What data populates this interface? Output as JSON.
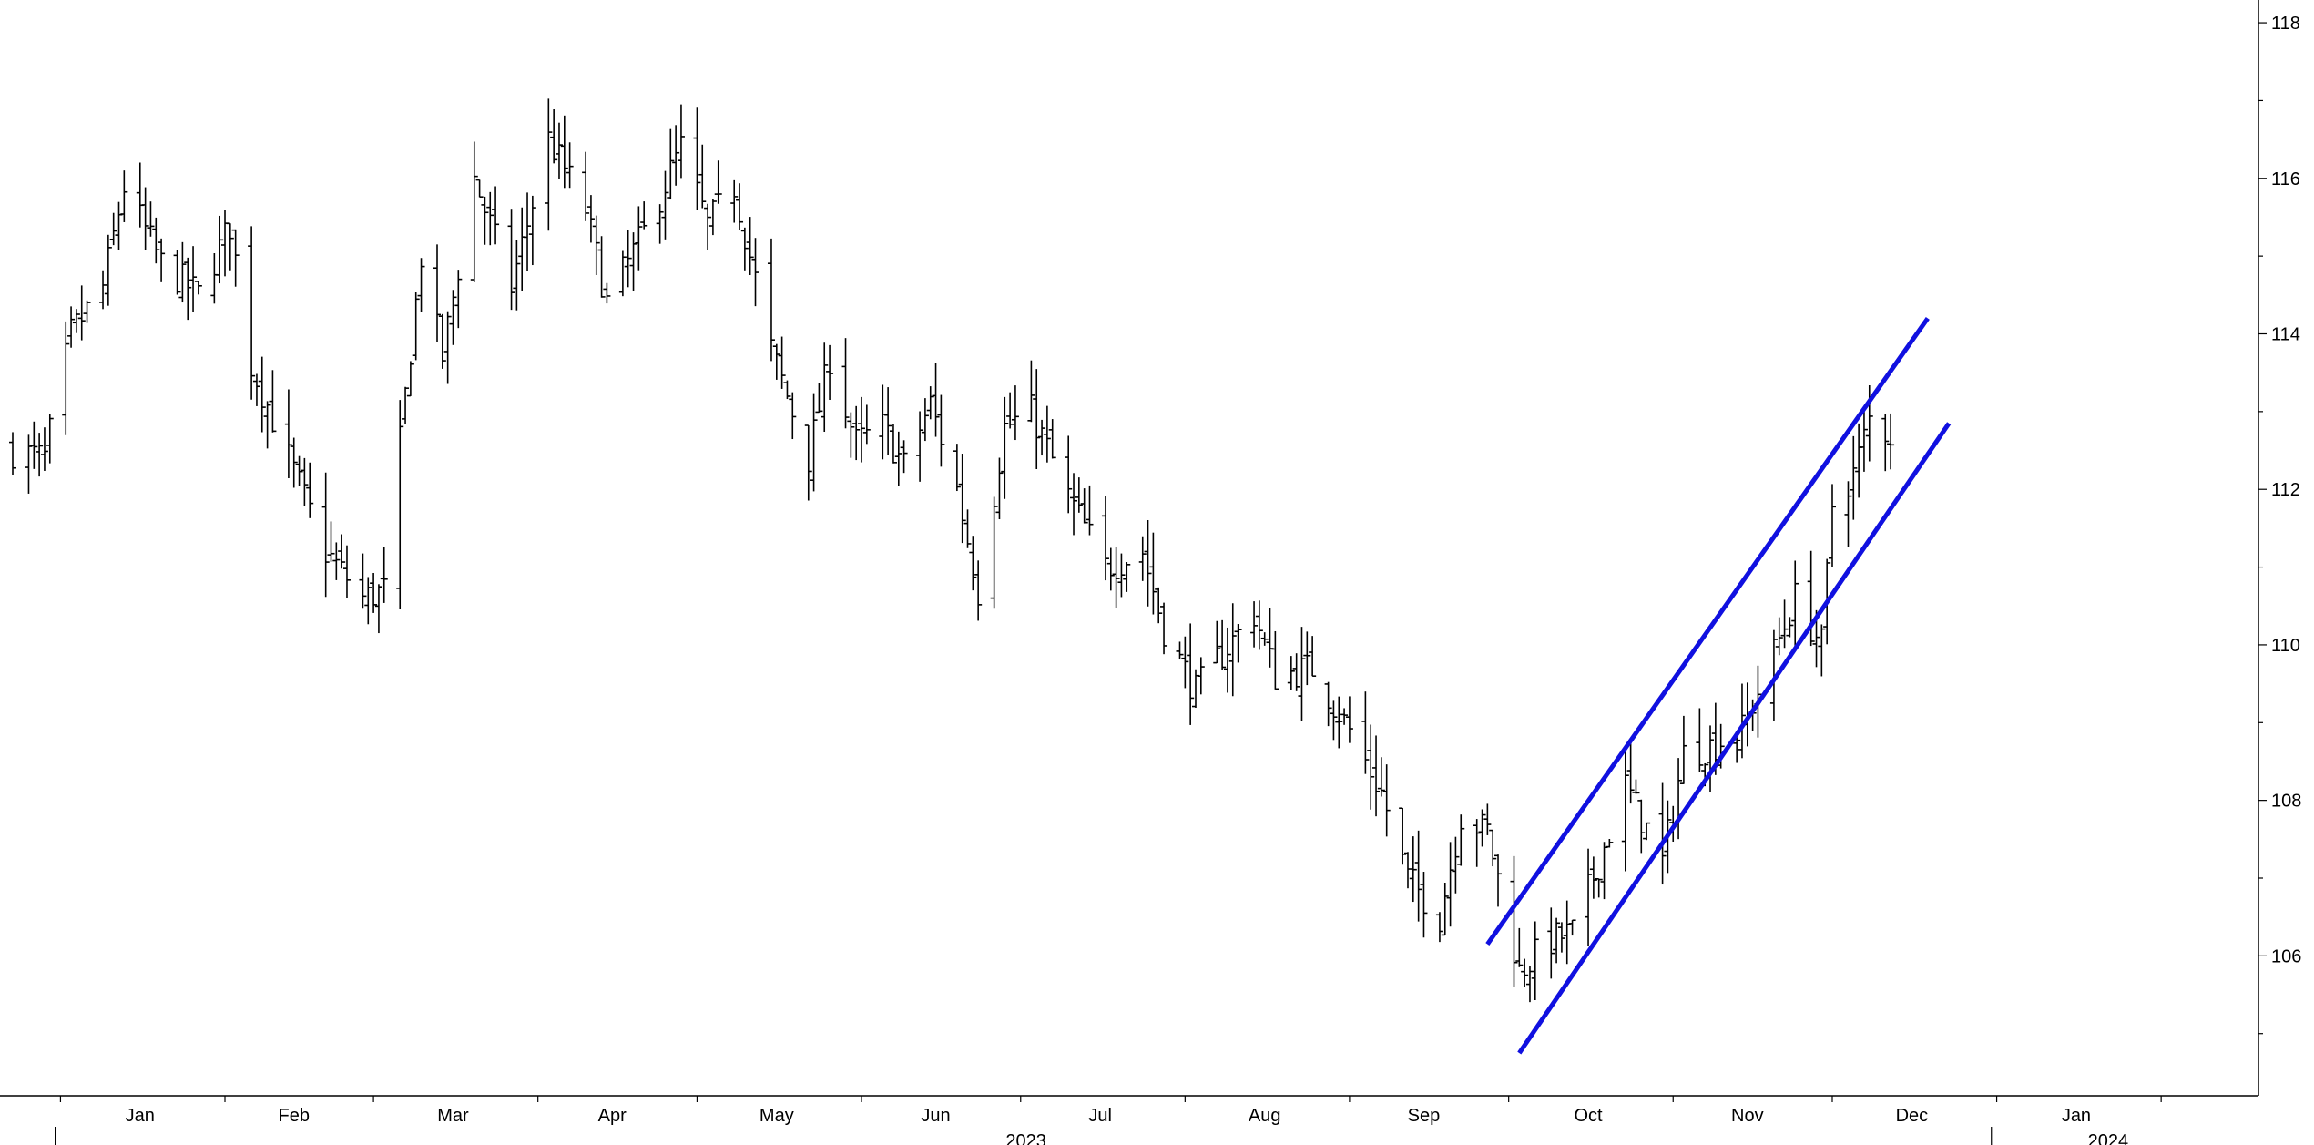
{
  "chart_data": {
    "type": "ohlc",
    "title": "",
    "xlabel": "",
    "ylabel": "",
    "x_range": [
      "2022-12-23",
      "2024-02-19"
    ],
    "ylim": [
      104.2,
      118.2
    ],
    "y_ticks": [
      106,
      108,
      110,
      112,
      114,
      116,
      118
    ],
    "y_axis_side": "right",
    "grid": false,
    "month_ticks": [
      {
        "label": "Jan",
        "date": "2023-01-16"
      },
      {
        "label": "Feb",
        "date": "2023-02-14"
      },
      {
        "label": "Mar",
        "date": "2023-03-16"
      },
      {
        "label": "Apr",
        "date": "2023-04-15"
      },
      {
        "label": "May",
        "date": "2023-05-16"
      },
      {
        "label": "Jun",
        "date": "2023-06-15"
      },
      {
        "label": "Jul",
        "date": "2023-07-16"
      },
      {
        "label": "Aug",
        "date": "2023-08-16"
      },
      {
        "label": "Sep",
        "date": "2023-09-15"
      },
      {
        "label": "Oct",
        "date": "2023-10-16"
      },
      {
        "label": "Nov",
        "date": "2023-11-15"
      },
      {
        "label": "Dec",
        "date": "2023-12-16"
      },
      {
        "label": "Jan",
        "date": "2024-01-16"
      }
    ],
    "year_labels": [
      {
        "label": "2023",
        "date": "2023-07-02"
      },
      {
        "label": "2024",
        "date": "2024-01-22"
      }
    ],
    "price_anchors": [
      [
        "2022-12-23",
        112.5
      ],
      [
        "2022-12-29",
        112.4
      ],
      [
        "2023-01-03",
        114.0
      ],
      [
        "2023-01-09",
        114.6
      ],
      [
        "2023-01-13",
        115.9
      ],
      [
        "2023-01-20",
        114.9
      ],
      [
        "2023-01-27",
        114.5
      ],
      [
        "2023-02-02",
        115.4
      ],
      [
        "2023-02-06",
        113.6
      ],
      [
        "2023-02-13",
        112.4
      ],
      [
        "2023-02-20",
        111.2
      ],
      [
        "2023-02-27",
        110.6
      ],
      [
        "2023-03-03",
        110.7
      ],
      [
        "2023-03-06",
        112.6
      ],
      [
        "2023-03-10",
        115.0
      ],
      [
        "2023-03-14",
        113.7
      ],
      [
        "2023-03-20",
        116.0
      ],
      [
        "2023-03-27",
        114.6
      ],
      [
        "2023-04-03",
        116.5
      ],
      [
        "2023-04-10",
        115.6
      ],
      [
        "2023-04-14",
        114.4
      ],
      [
        "2023-04-21",
        115.3
      ],
      [
        "2023-04-28",
        116.4
      ],
      [
        "2023-05-03",
        115.4
      ],
      [
        "2023-05-08",
        115.9
      ],
      [
        "2023-05-15",
        113.8
      ],
      [
        "2023-05-22",
        112.4
      ],
      [
        "2023-05-26",
        113.7
      ],
      [
        "2023-05-31",
        112.6
      ],
      [
        "2023-06-05",
        112.8
      ],
      [
        "2023-06-09",
        112.3
      ],
      [
        "2023-06-14",
        113.1
      ],
      [
        "2023-06-19",
        112.0
      ],
      [
        "2023-06-23",
        110.7
      ],
      [
        "2023-06-28",
        112.8
      ],
      [
        "2023-07-03",
        113.0
      ],
      [
        "2023-07-10",
        111.9
      ],
      [
        "2023-07-17",
        111.0
      ],
      [
        "2023-07-24",
        111.2
      ],
      [
        "2023-07-28",
        110.2
      ],
      [
        "2023-08-03",
        109.4
      ],
      [
        "2023-08-07",
        109.8
      ],
      [
        "2023-08-14",
        110.4
      ],
      [
        "2023-08-18",
        109.6
      ],
      [
        "2023-08-25",
        109.7
      ],
      [
        "2023-09-01",
        108.9
      ],
      [
        "2023-09-07",
        108.1
      ],
      [
        "2023-09-12",
        107.0
      ],
      [
        "2023-09-18",
        106.5
      ],
      [
        "2023-09-22",
        107.8
      ],
      [
        "2023-09-27",
        107.6
      ],
      [
        "2023-10-03",
        105.8
      ],
      [
        "2023-10-09",
        106.2
      ],
      [
        "2023-10-13",
        106.3
      ],
      [
        "2023-10-18",
        107.2
      ],
      [
        "2023-10-23",
        108.2
      ],
      [
        "2023-10-30",
        107.2
      ],
      [
        "2023-11-03",
        108.6
      ],
      [
        "2023-11-08",
        108.7
      ],
      [
        "2023-11-14",
        108.9
      ],
      [
        "2023-11-20",
        109.9
      ],
      [
        "2023-11-24",
        110.6
      ],
      [
        "2023-11-29",
        110.0
      ],
      [
        "2023-12-01",
        111.8
      ],
      [
        "2023-12-05",
        112.2
      ],
      [
        "2023-12-08",
        112.9
      ],
      [
        "2023-12-12",
        112.7
      ]
    ],
    "series": [
      {
        "type": "line",
        "color": "#1010e0",
        "points": [
          [
            "2023-09-27",
            106.15
          ],
          [
            "2023-12-19",
            114.2
          ]
        ]
      },
      {
        "type": "line",
        "color": "#1010e0",
        "points": [
          [
            "2023-10-03",
            104.75
          ],
          [
            "2023-12-23",
            112.85
          ]
        ]
      }
    ]
  }
}
